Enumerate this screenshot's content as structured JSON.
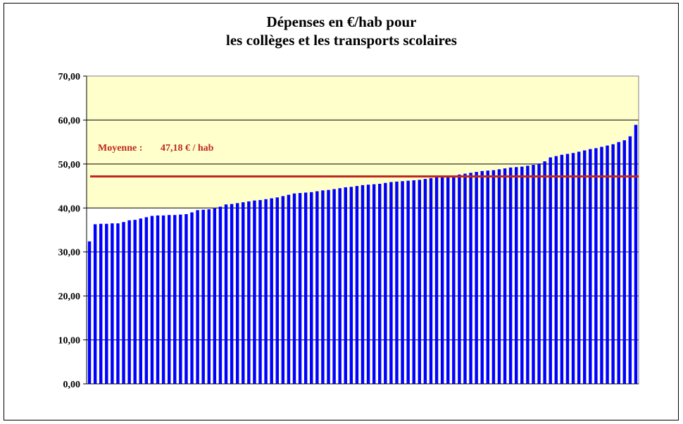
{
  "chart_data": {
    "type": "bar",
    "title_line1": "Dépenses en €/hab pour",
    "title_line2": "les collèges et les transports scolaires",
    "xlabel": "",
    "ylabel": "",
    "ylim": [
      0,
      70
    ],
    "yticks": [
      "0,00",
      "10,00",
      "20,00",
      "30,00",
      "40,00",
      "50,00",
      "60,00",
      "70,00"
    ],
    "grid": true,
    "bar_color": "#0000ff",
    "plot_fill_above_40": "#ffffcc",
    "plot_fill_below_40": "#ffffff",
    "average": {
      "value": 47.18,
      "label": "Moyenne :",
      "value_text": "47,18 € / hab",
      "color": "#c0281e"
    },
    "values": [
      32.4,
      36.3,
      36.4,
      36.4,
      36.5,
      36.5,
      36.8,
      37.2,
      37.3,
      37.6,
      37.9,
      38.2,
      38.3,
      38.3,
      38.4,
      38.4,
      38.5,
      38.6,
      39.0,
      39.5,
      39.6,
      39.7,
      39.9,
      40.3,
      40.8,
      40.9,
      41.1,
      41.3,
      41.5,
      41.7,
      41.8,
      42.0,
      42.2,
      42.4,
      42.7,
      43.0,
      43.3,
      43.4,
      43.5,
      43.6,
      43.8,
      44.0,
      44.1,
      44.3,
      44.5,
      44.7,
      44.8,
      45.0,
      45.2,
      45.3,
      45.4,
      45.5,
      45.7,
      45.9,
      46.0,
      46.1,
      46.2,
      46.3,
      46.4,
      46.6,
      46.8,
      47.0,
      47.1,
      47.2,
      47.4,
      47.6,
      47.8,
      48.0,
      48.2,
      48.4,
      48.5,
      48.6,
      48.8,
      49.0,
      49.2,
      49.3,
      49.4,
      49.6,
      49.8,
      50.1,
      50.6,
      51.5,
      51.8,
      52.1,
      52.3,
      52.5,
      52.8,
      53.1,
      53.4,
      53.6,
      53.9,
      54.2,
      54.5,
      55.0,
      55.4,
      56.3,
      58.9
    ]
  }
}
